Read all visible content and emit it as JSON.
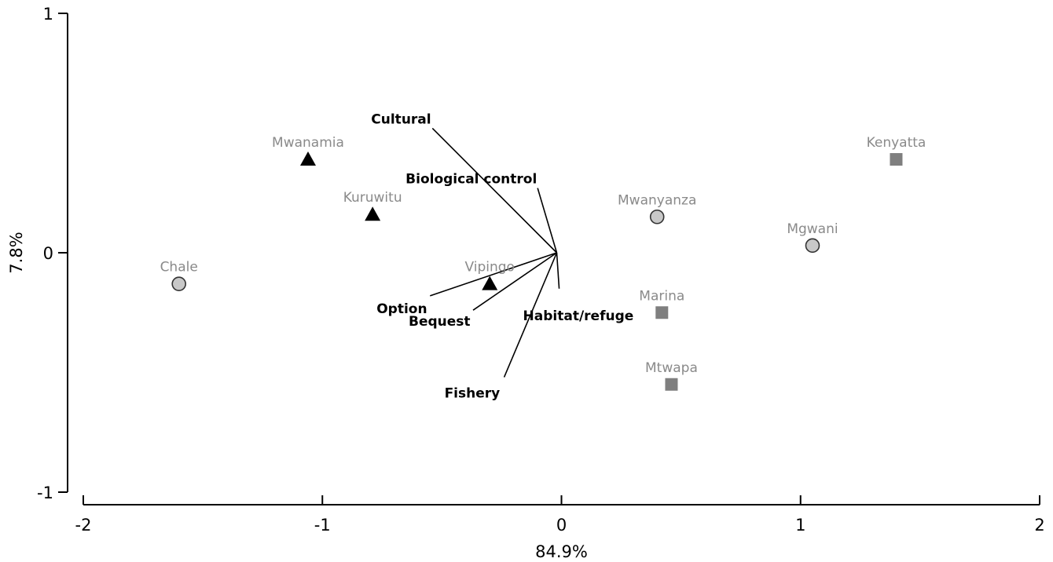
{
  "chart_data": {
    "type": "scatter",
    "subtype": "biplot",
    "xlabel": "84.9%",
    "ylabel": "7.8%",
    "xlim": [
      -2,
      2
    ],
    "ylim": [
      -1,
      1
    ],
    "x_ticks": [
      -2,
      -1,
      0,
      1,
      2
    ],
    "y_ticks": [
      -1,
      0,
      1
    ],
    "x_tick_labels": [
      "-2",
      "-1",
      "0",
      "1",
      "2"
    ],
    "y_tick_labels": [
      "-1",
      "0",
      "1"
    ],
    "grid": false,
    "points": [
      {
        "label": "Chale",
        "x": -1.6,
        "y": -0.13,
        "shape": "circle"
      },
      {
        "label": "Mwanamia",
        "x": -1.06,
        "y": 0.39,
        "shape": "triangle"
      },
      {
        "label": "Kuruwitu",
        "x": -0.79,
        "y": 0.16,
        "shape": "triangle"
      },
      {
        "label": "Vipingo",
        "x": -0.3,
        "y": -0.13,
        "shape": "triangle"
      },
      {
        "label": "Mwanyanza",
        "x": 0.4,
        "y": 0.15,
        "shape": "circle"
      },
      {
        "label": "Mgwani",
        "x": 1.05,
        "y": 0.03,
        "shape": "circle"
      },
      {
        "label": "Kenyatta",
        "x": 1.4,
        "y": 0.39,
        "shape": "square"
      },
      {
        "label": "Marina",
        "x": 0.42,
        "y": -0.25,
        "shape": "square"
      },
      {
        "label": "Mtwapa",
        "x": 0.46,
        "y": -0.55,
        "shape": "square"
      }
    ],
    "vectors": [
      {
        "label": "Cultural",
        "x": -0.52,
        "y": 0.52
      },
      {
        "label": "Biological control",
        "x": -0.08,
        "y": 0.27
      },
      {
        "label": "Option",
        "x": -0.53,
        "y": -0.18
      },
      {
        "label": "Bequest",
        "x": -0.35,
        "y": -0.24
      },
      {
        "label": "Habitat/refuge",
        "x": 0.01,
        "y": -0.15
      },
      {
        "label": "Fishery",
        "x": -0.22,
        "y": -0.52
      }
    ]
  }
}
